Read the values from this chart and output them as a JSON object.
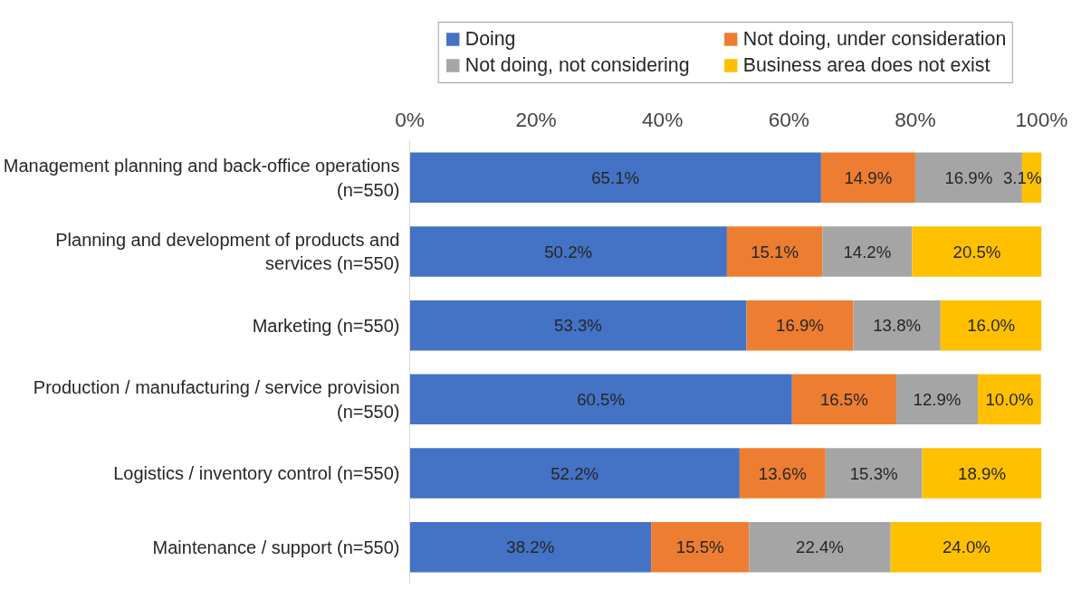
{
  "chart_data": {
    "type": "bar",
    "orientation": "horizontal",
    "stacked": true,
    "categories": [
      "Management planning and back-office operations (n=550)",
      "Planning and development of products and services (n=550)",
      "Marketing (n=550)",
      "Production / manufacturing / service provision (n=550)",
      "Logistics / inventory control (n=550)",
      "Maintenance / support (n=550)"
    ],
    "series": [
      {
        "name": "Doing",
        "color": "#4472c4",
        "values": [
          65.1,
          50.2,
          53.3,
          60.5,
          52.2,
          38.2
        ],
        "value_labels": [
          "65.1%",
          "50.2%",
          "53.3%",
          "60.5%",
          "52.2%",
          "38.2%"
        ]
      },
      {
        "name": "Not doing, under consideration",
        "color": "#ed7d31",
        "values": [
          14.9,
          15.1,
          16.9,
          16.5,
          13.6,
          15.5
        ],
        "value_labels": [
          "14.9%",
          "15.1%",
          "16.9%",
          "16.5%",
          "13.6%",
          "15.5%"
        ]
      },
      {
        "name": "Not doing, not considering",
        "color": "#a5a5a5",
        "values": [
          16.9,
          14.2,
          13.8,
          12.9,
          15.3,
          22.4
        ],
        "value_labels": [
          "16.9%",
          "14.2%",
          "13.8%",
          "12.9%",
          "15.3%",
          "22.4%"
        ]
      },
      {
        "name": "Business area does not exist",
        "color": "#ffc000",
        "values": [
          3.1,
          20.5,
          16.0,
          10.0,
          18.9,
          24.0
        ],
        "value_labels": [
          "3.1%",
          "20.5%",
          "16.0%",
          "10.0%",
          "18.9%",
          "24.0%"
        ]
      }
    ],
    "xlim": [
      0,
      100
    ],
    "xticks": [
      {
        "value": 0,
        "label": "0%"
      },
      {
        "value": 20,
        "label": "20%"
      },
      {
        "value": 40,
        "label": "40%"
      },
      {
        "value": 60,
        "label": "60%"
      },
      {
        "value": 80,
        "label": "80%"
      },
      {
        "value": 100,
        "label": "100%"
      }
    ],
    "grid": false,
    "legend": "top"
  }
}
